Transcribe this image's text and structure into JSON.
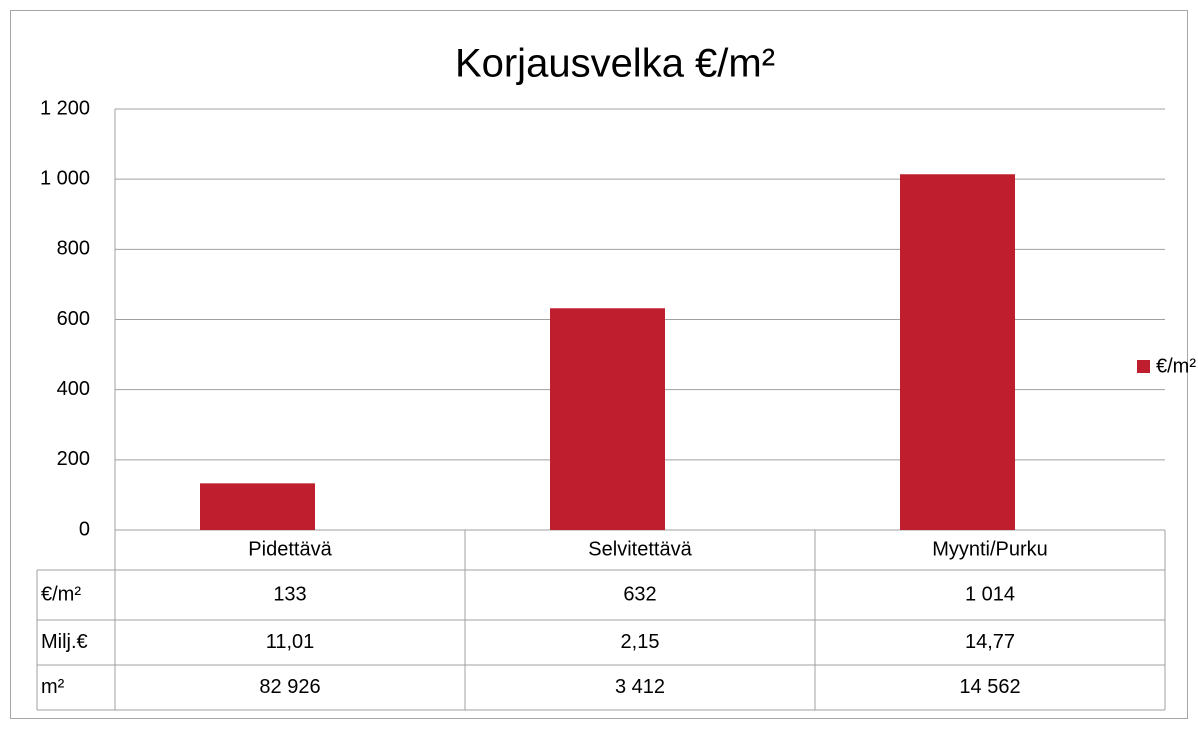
{
  "chart_data": {
    "type": "bar",
    "title": "Korjausvelka €/m²",
    "categories": [
      "Pidettävä",
      "Selvitettävä",
      "Myynti/Purku"
    ],
    "series": [
      {
        "name": "€/m²",
        "color": "#be1e2d",
        "values": [
          133,
          632,
          1014
        ],
        "value_labels": [
          "133",
          "632",
          "1 014"
        ]
      }
    ],
    "ylim": [
      0,
      1200
    ],
    "yticks": [
      0,
      200,
      400,
      600,
      800,
      {
        "value": 1000,
        "label": "1 000"
      },
      {
        "value": 1200,
        "label": "1 200"
      }
    ],
    "grid": true,
    "legend": "right",
    "data_table": {
      "rows": [
        {
          "label": "Milj.€",
          "cells": [
            "11,01",
            "2,15",
            "14,77"
          ]
        },
        {
          "label": "m²",
          "cells": [
            "82 926",
            "3 412",
            "14 562"
          ]
        }
      ]
    }
  }
}
